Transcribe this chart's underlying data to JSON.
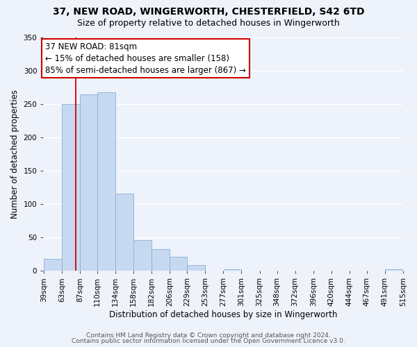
{
  "title": "37, NEW ROAD, WINGERWORTH, CHESTERFIELD, S42 6TD",
  "subtitle": "Size of property relative to detached houses in Wingerworth",
  "xlabel": "Distribution of detached houses by size in Wingerworth",
  "ylabel": "Number of detached properties",
  "bin_edges": [
    39,
    63,
    87,
    110,
    134,
    158,
    182,
    206,
    229,
    253,
    277,
    301,
    325,
    348,
    372,
    396,
    420,
    444,
    467,
    491,
    515
  ],
  "bar_heights": [
    18,
    250,
    265,
    268,
    116,
    46,
    33,
    21,
    9,
    0,
    2,
    0,
    0,
    0,
    0,
    0,
    0,
    0,
    0,
    2
  ],
  "tick_labels": [
    "39sqm",
    "63sqm",
    "87sqm",
    "110sqm",
    "134sqm",
    "158sqm",
    "182sqm",
    "206sqm",
    "229sqm",
    "253sqm",
    "277sqm",
    "301sqm",
    "325sqm",
    "348sqm",
    "372sqm",
    "396sqm",
    "420sqm",
    "444sqm",
    "467sqm",
    "491sqm",
    "515sqm"
  ],
  "ylim": [
    0,
    350
  ],
  "yticks": [
    0,
    50,
    100,
    150,
    200,
    250,
    300,
    350
  ],
  "bar_facecolor": "#c6d9f0",
  "bar_edgecolor": "#8ab0d4",
  "vline_x": 81,
  "vline_color": "#cc0000",
  "annotation_title": "37 NEW ROAD: 81sqm",
  "annotation_line1": "← 15% of detached houses are smaller (158)",
  "annotation_line2": "85% of semi-detached houses are larger (867) →",
  "annotation_box_facecolor": "#ffffff",
  "annotation_box_edgecolor": "#cc0000",
  "footer_line1": "Contains HM Land Registry data © Crown copyright and database right 2024.",
  "footer_line2": "Contains public sector information licensed under the Open Government Licence v3.0.",
  "bg_color": "#eef2fb",
  "grid_color": "#ffffff",
  "title_fontsize": 10,
  "subtitle_fontsize": 9,
  "xlabel_fontsize": 8.5,
  "ylabel_fontsize": 8.5,
  "tick_fontsize": 7.5,
  "annotation_fontsize": 8.5,
  "footer_fontsize": 6.5
}
